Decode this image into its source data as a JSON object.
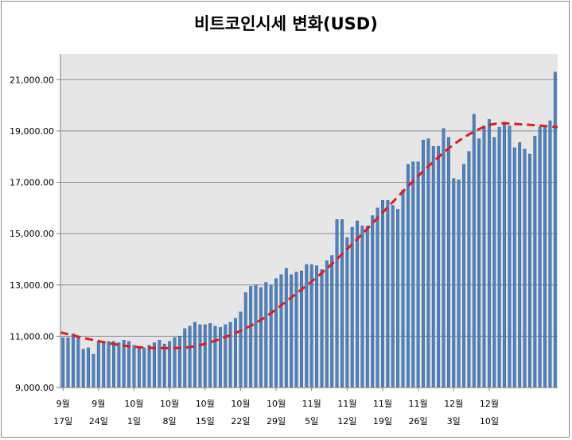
{
  "chart_data": {
    "type": "bar",
    "title": "비트코인시세 변화(USD)",
    "xlabel": "",
    "ylabel": "",
    "ylim": [
      9000,
      22000
    ],
    "y_ticks": [
      "9,000.00",
      "11,000.00",
      "13,000.00",
      "15,000.00",
      "17,000.00",
      "19,000.00",
      "21,000.00"
    ],
    "y_tick_values": [
      9000,
      11000,
      13000,
      15000,
      17000,
      19000,
      21000
    ],
    "x_tick_labels": [
      {
        "month": "9월",
        "day": "17일"
      },
      {
        "month": "9월",
        "day": "24일"
      },
      {
        "month": "10월",
        "day": "1일"
      },
      {
        "month": "10월",
        "day": "8일"
      },
      {
        "month": "10월",
        "day": "15일"
      },
      {
        "month": "10월",
        "day": "22일"
      },
      {
        "month": "10월",
        "day": "29일"
      },
      {
        "month": "11월",
        "day": "5일"
      },
      {
        "month": "11월",
        "day": "12일"
      },
      {
        "month": "11월",
        "day": "19일"
      },
      {
        "month": "11월",
        "day": "26일"
      },
      {
        "month": "12월",
        "day": "3일"
      },
      {
        "month": "12월",
        "day": "10일"
      }
    ],
    "bar_color": "#4f81bd",
    "trend_color": "#e31a1c",
    "grid": true,
    "plot_background": "#e6e6e6",
    "series": [
      {
        "values": [
          10950,
          10950,
          11100,
          10950,
          10500,
          10550,
          10300,
          10800,
          10750,
          10800,
          10800,
          10750,
          10850,
          10800,
          10650,
          10550,
          10550,
          10650,
          10750,
          10850,
          10700,
          10800,
          10950,
          11000,
          11300,
          11400,
          11550,
          11450,
          11450,
          11500,
          11400,
          11350,
          11450,
          11550,
          11700,
          11950,
          12700,
          12950,
          13000,
          12900,
          13100,
          13000,
          13250,
          13400,
          13650,
          13400,
          13500,
          13550,
          13800,
          13800,
          13750,
          13600,
          13950,
          14150,
          15550,
          15550,
          14850,
          15250,
          15500,
          15300,
          15300,
          15700,
          16000,
          16300,
          16300,
          16100,
          15950,
          16700,
          17700,
          17800,
          17800,
          18650,
          18700,
          18400,
          18400,
          19100,
          18750,
          17150,
          17100,
          17700,
          18200,
          19650,
          18700,
          19200,
          19450,
          18750,
          19150,
          19350,
          19200,
          18350,
          18550,
          18300,
          18100,
          18800,
          19150,
          19200,
          19400,
          21300
        ]
      },
      {
        "name": "",
        "type": "trend",
        "values": [
          11150,
          10850,
          10620,
          10540,
          10600,
          10980,
          11600,
          12550,
          13600,
          14850,
          16200,
          17500,
          18600,
          19250,
          19250,
          19150
        ]
      }
    ]
  }
}
